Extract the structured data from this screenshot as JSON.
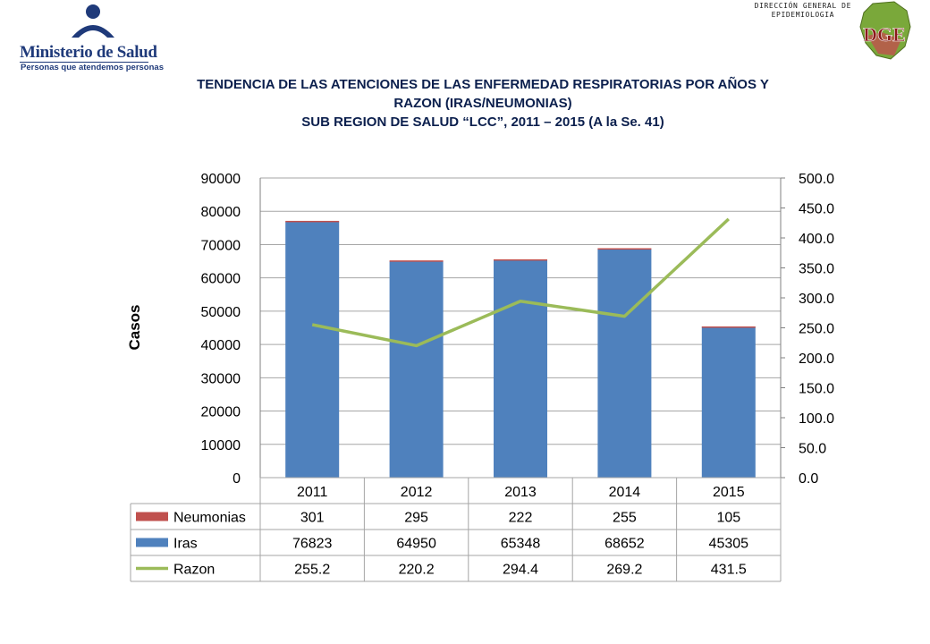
{
  "header": {
    "ministry_name": "Ministerio de Salud",
    "ministry_tagline": "Personas que atendemos personas",
    "dge_line1": "DIRECCIÓN GENERAL DE",
    "dge_line2": "EPIDEMIOLOGIA",
    "dge_logo_text": "DGE"
  },
  "titles": {
    "line1": "TENDENCIA DE LAS ATENCIONES DE LAS ENFERMEDAD RESPIRATORIAS POR AÑOS Y",
    "line2": "RAZON (IRAS/NEUMONIAS)",
    "line3": "SUB REGION DE SALUD “LCC”, 2011 – 2015 (A la Se. 41)"
  },
  "chart_data": {
    "type": "bar",
    "stacked": true,
    "categories": [
      "2011",
      "2012",
      "2013",
      "2014",
      "2015"
    ],
    "series": [
      {
        "name": "Neumonias",
        "values": [
          301,
          295,
          222,
          255,
          105
        ],
        "color": "#c0504d",
        "axis": "left",
        "kind": "bar"
      },
      {
        "name": "Iras",
        "values": [
          76823,
          64950,
          65348,
          68652,
          45305
        ],
        "color": "#4f81bd",
        "axis": "left",
        "kind": "bar"
      },
      {
        "name": "Razon",
        "values": [
          255.2,
          220.2,
          294.4,
          269.2,
          431.5
        ],
        "color": "#9bbb59",
        "axis": "right",
        "kind": "line"
      }
    ],
    "table_display": {
      "Neumonias": [
        "301",
        "295",
        "222",
        "255",
        "105"
      ],
      "Iras": [
        "76823",
        "64950",
        "65348",
        "68652",
        "45305"
      ],
      "Razon": [
        "255.2",
        "220.2",
        "294.4",
        "269.2",
        "431.5"
      ]
    },
    "ylabel": "Casos",
    "ylim": [
      0,
      90000
    ],
    "y_ticks": [
      "0",
      "10000",
      "20000",
      "30000",
      "40000",
      "50000",
      "60000",
      "70000",
      "80000",
      "90000"
    ],
    "y2lim": [
      0,
      500
    ],
    "y2_ticks": [
      "0.0",
      "50.0",
      "100.0",
      "150.0",
      "200.0",
      "250.0",
      "300.0",
      "350.0",
      "400.0",
      "450.0",
      "500.0"
    ],
    "grid": true,
    "legend": "data-table"
  }
}
